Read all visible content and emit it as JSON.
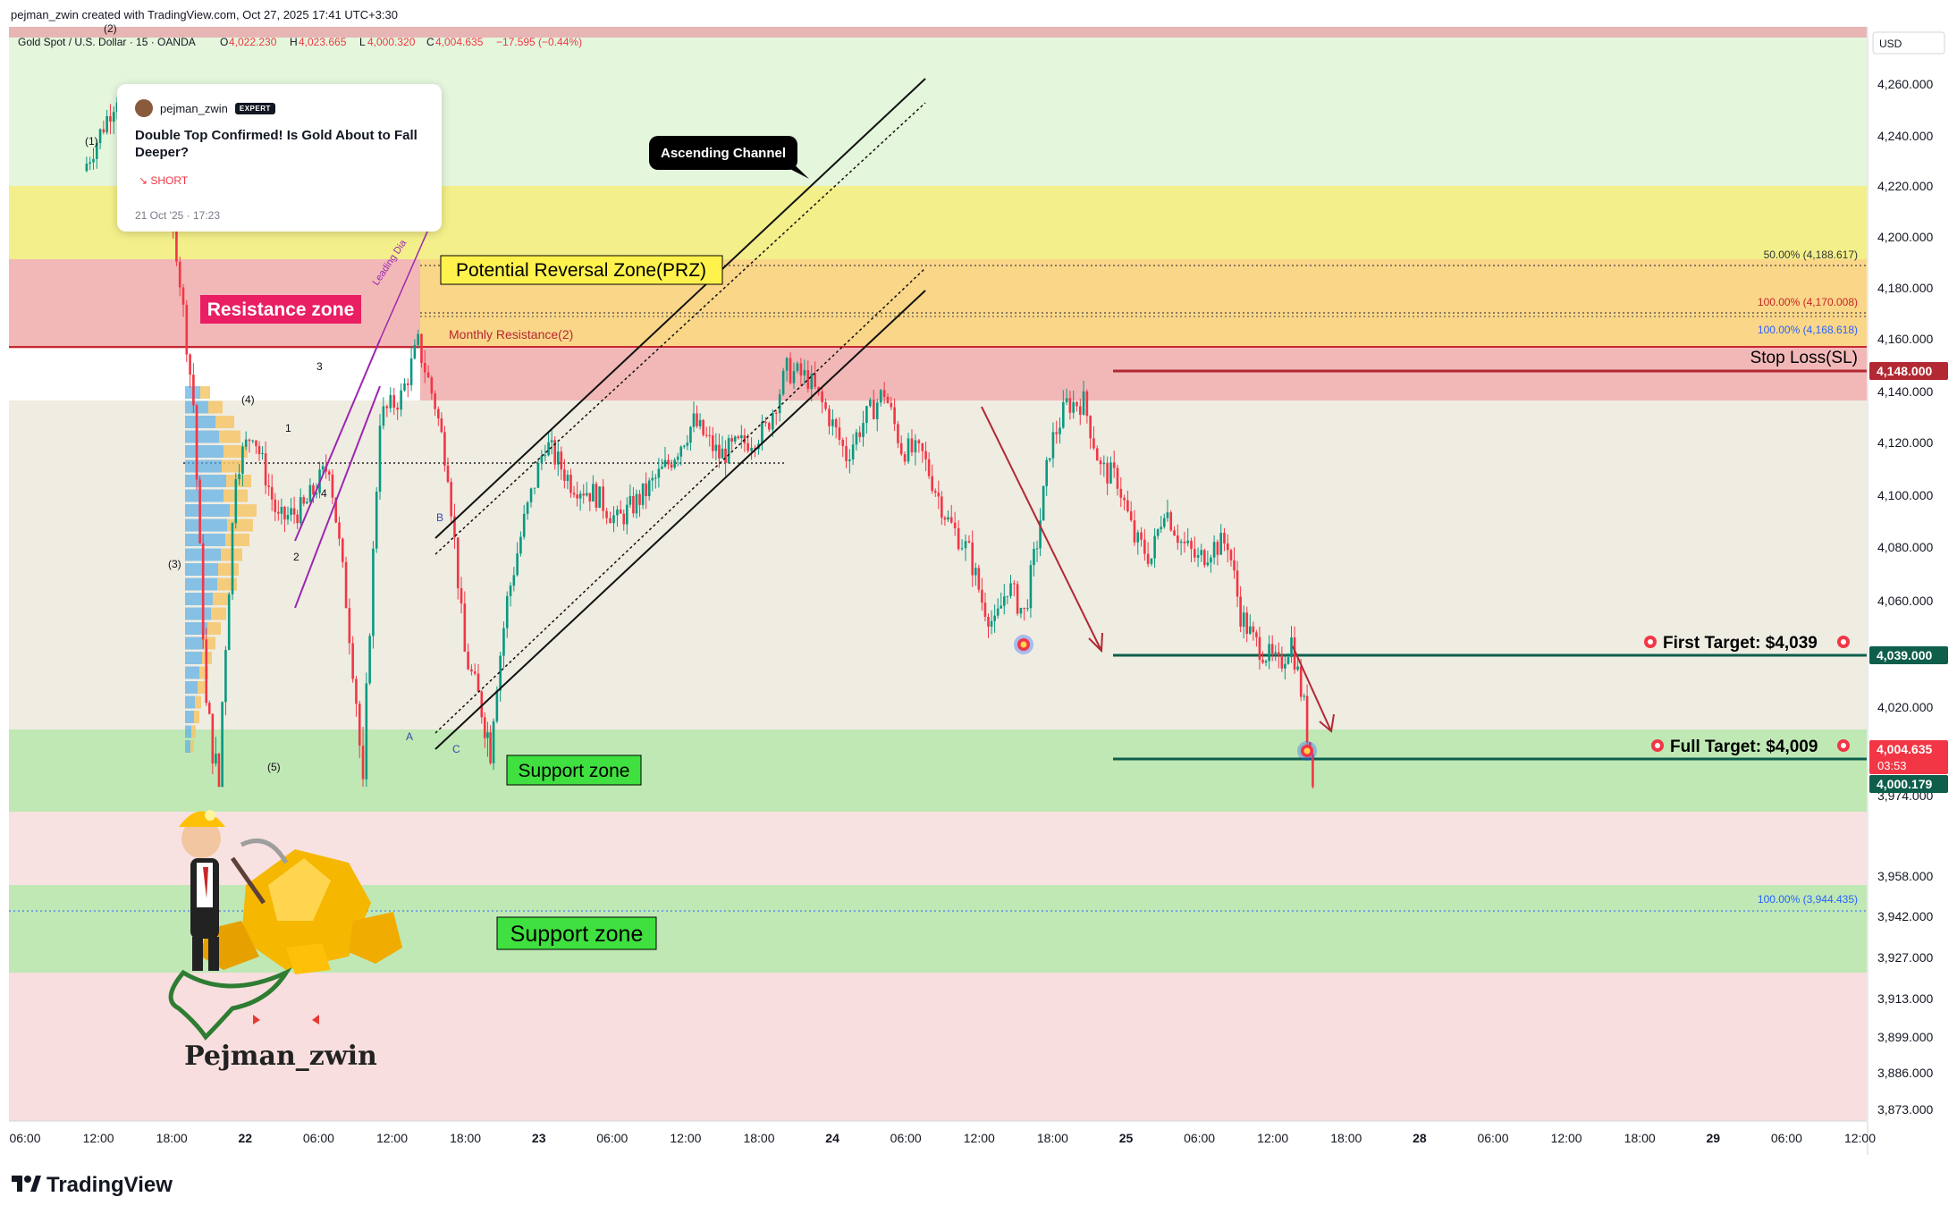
{
  "header": {
    "created_by": "pejman_zwin created with TradingView.com, Oct 27, 2025 17:41 UTC+3:30",
    "symbol": "Gold Spot / U.S. Dollar · 15 · OANDA",
    "ohlc": {
      "o_label": "O",
      "o": "4,022.230",
      "h_label": "H",
      "h": "4,023.665",
      "l_label": "L",
      "l": "4,000.320",
      "c_label": "C",
      "c": "4,004.635",
      "change": "−17.595 (−0.44%)"
    }
  },
  "idea_card": {
    "author": "pejman_zwin",
    "badge": "EXPERT",
    "title": "Double Top Confirmed! Is Gold About to Fall Deeper?",
    "direction": "↘ SHORT",
    "date": "21 Oct '25 · 17:23"
  },
  "price_axis": {
    "currency": "USD",
    "ticks": [
      "4,260.000",
      "4,240.000",
      "4,220.000",
      "4,200.000",
      "4,180.000",
      "4,160.000",
      "4,140.000",
      "4,120.000",
      "4,100.000",
      "4,080.000",
      "4,060.000",
      "4,040.000",
      "4,020.000",
      "3,974.000",
      "3,958.000",
      "3,942.000",
      "3,927.000",
      "3,913.000",
      "3,899.000",
      "3,886.000",
      "3,873.000"
    ],
    "price_tags": [
      {
        "text": "4,148.000",
        "color": "#b22833"
      },
      {
        "text": "4,039.000",
        "color": "#0e5e4b"
      },
      {
        "text": "4,004.635",
        "color": "#f23645"
      },
      {
        "text": "03:53",
        "color": "#f23645"
      },
      {
        "text": "4,000.179",
        "color": "#0e5e4b"
      }
    ]
  },
  "time_axis": {
    "ticks": [
      "06:00",
      "12:00",
      "18:00",
      "22",
      "06:00",
      "12:00",
      "18:00",
      "23",
      "06:00",
      "12:00",
      "18:00",
      "24",
      "06:00",
      "12:00",
      "18:00",
      "25",
      "06:00",
      "12:00",
      "18:00",
      "28",
      "06:00",
      "12:00",
      "18:00",
      "29",
      "06:00",
      "12:00"
    ]
  },
  "annotations": {
    "ascending_channel": "Ascending Channel",
    "prz": "Potential Reversal Zone(PRZ)",
    "resistance_zone": "Resistance zone",
    "monthly_resistance": "Monthly Resistance(2)",
    "leading_diagonal": "Leading Dia",
    "fib_50": "50.00% (4,188.617)",
    "fib_100_a": "100.00% (4,170.008)",
    "fib_100_b": "100.00% (4,168.618)",
    "fib_100_c": "100.00% (3,944.435)",
    "stop_loss": "Stop Loss(SL)",
    "first_target": "First Target: $4,039",
    "full_target": "Full Target: $4,009",
    "support_zone_1": "Support zone",
    "support_zone_2": "Support zone",
    "wave_labels": [
      "(1)",
      "(2)",
      "(3)",
      "(4)",
      "(5)",
      "1",
      "2",
      "3",
      "4",
      "A",
      "B",
      "C"
    ],
    "signature": "Pejman_zwin",
    "target_icon": "target-dart-icon"
  },
  "footer": {
    "logo_text": "TradingView",
    "logo_icon": "tradingview-logo-icon"
  },
  "colors": {
    "up": "#089981",
    "down": "#f23645",
    "resistance_fill": "#f4b8b8",
    "prz_fill": "#f3ef8a",
    "support_fill": "#bfe8b5",
    "stop_loss_line": "#b22833",
    "target_line": "#0e5e4b"
  },
  "chart_data": {
    "type": "candlestick",
    "title": "",
    "symbol": "Gold Spot / U.S. Dollar",
    "timeframe": "15",
    "x_axis": "time (Oct 21 – Oct 29, 2025)",
    "y_axis": "USD",
    "ylim": [
      3864,
      4276
    ],
    "levels": {
      "stop_loss": 4148.0,
      "first_target": 4039.0,
      "full_target": 4009.0,
      "last_close": 4004.635,
      "current_bid_tag": 4000.179,
      "fib_50": 4188.617,
      "fib_100_a": 4170.008,
      "fib_100_b": 4168.618,
      "fib_100_c": 3944.435
    },
    "zones": [
      {
        "name": "PRZ",
        "low": 4168,
        "high": 4222
      },
      {
        "name": "Resistance zone",
        "low": 4137,
        "high": 4193
      },
      {
        "name": "Support zone",
        "low": 3989,
        "high": 4013
      },
      {
        "name": "Support zone",
        "low": 3921,
        "high": 3953
      }
    ],
    "price_path": [
      [
        0,
        4226
      ],
      [
        40,
        4256
      ],
      [
        90,
        4218
      ],
      [
        110,
        4195
      ],
      [
        130,
        4135
      ],
      [
        145,
        4020
      ],
      [
        160,
        4000
      ],
      [
        180,
        4110
      ],
      [
        200,
        4125
      ],
      [
        230,
        4090
      ],
      [
        260,
        4095
      ],
      [
        290,
        4112
      ],
      [
        310,
        4060
      ],
      [
        330,
        3998
      ],
      [
        350,
        4130
      ],
      [
        375,
        4138
      ],
      [
        395,
        4158
      ],
      [
        415,
        4135
      ],
      [
        430,
        4110
      ],
      [
        450,
        4040
      ],
      [
        470,
        4020
      ],
      [
        480,
        4010
      ],
      [
        500,
        4060
      ],
      [
        520,
        4090
      ],
      [
        545,
        4120
      ],
      [
        575,
        4105
      ],
      [
        605,
        4100
      ],
      [
        630,
        4090
      ],
      [
        660,
        4100
      ],
      [
        690,
        4112
      ],
      [
        720,
        4128
      ],
      [
        750,
        4115
      ],
      [
        780,
        4120
      ],
      [
        805,
        4125
      ],
      [
        830,
        4148
      ],
      [
        855,
        4145
      ],
      [
        880,
        4130
      ],
      [
        900,
        4115
      ],
      [
        920,
        4128
      ],
      [
        945,
        4140
      ],
      [
        965,
        4118
      ],
      [
        990,
        4115
      ],
      [
        1020,
        4090
      ],
      [
        1045,
        4078
      ],
      [
        1060,
        4060
      ],
      [
        1075,
        4050
      ],
      [
        1090,
        4066
      ],
      [
        1110,
        4055
      ],
      [
        1125,
        4082
      ],
      [
        1140,
        4118
      ],
      [
        1160,
        4135
      ],
      [
        1180,
        4136
      ],
      [
        1200,
        4110
      ],
      [
        1220,
        4106
      ],
      [
        1240,
        4083
      ],
      [
        1260,
        4076
      ],
      [
        1275,
        4096
      ],
      [
        1295,
        4082
      ],
      [
        1315,
        4075
      ],
      [
        1330,
        4080
      ],
      [
        1350,
        4082
      ],
      [
        1365,
        4055
      ],
      [
        1380,
        4045
      ],
      [
        1395,
        4040
      ],
      [
        1410,
        4035
      ],
      [
        1425,
        4045
      ],
      [
        1440,
        4020
      ],
      [
        1450,
        4004
      ]
    ]
  }
}
